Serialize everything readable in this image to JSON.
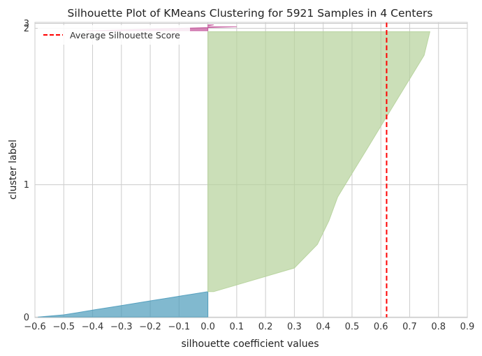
{
  "chart_data": {
    "type": "area",
    "title": "Silhouette Plot of KMeans Clustering for 5921 Samples in 4 Centers",
    "xlabel": "silhouette coefficient values",
    "ylabel": "cluster label",
    "xlim": [
      -0.6,
      0.9
    ],
    "xticks": [
      "−0.6",
      "−0.5",
      "−0.4",
      "−0.3",
      "−0.2",
      "−0.1",
      "0.0",
      "0.1",
      "0.2",
      "0.3",
      "0.4",
      "0.5",
      "0.6",
      "0.7",
      "0.8",
      "0.9"
    ],
    "xtick_values": [
      -0.6,
      -0.5,
      -0.4,
      -0.3,
      -0.2,
      -0.1,
      0.0,
      0.1,
      0.2,
      0.3,
      0.4,
      0.5,
      0.6,
      0.7,
      0.8,
      0.9
    ],
    "yticks": [
      "0",
      "1",
      "2",
      "3"
    ],
    "ylim": [
      -10,
      6011
    ],
    "grid": true,
    "legend": {
      "position": "top-left",
      "entries": [
        "Average Silhouette Score"
      ]
    },
    "average_silhouette_score": 0.62,
    "clusters": [
      {
        "label": "0",
        "color": "#4c9bbb",
        "y_start": 0,
        "size": 520,
        "tick_y": 0,
        "sorted_values": [
          -0.59,
          -0.5,
          -0.45,
          -0.4,
          -0.35,
          -0.3,
          -0.25,
          -0.2,
          -0.15,
          -0.1,
          -0.05,
          0.0
        ]
      },
      {
        "label": "1",
        "color": "#b5d29a",
        "y_start": 520,
        "size": 5300,
        "tick_y": 2700,
        "sorted_values": [
          0.02,
          0.3,
          0.38,
          0.42,
          0.45,
          0.5,
          0.55,
          0.6,
          0.65,
          0.7,
          0.75,
          0.77
        ]
      },
      {
        "label": "2",
        "color": "#c4559b",
        "y_start": 5840,
        "size": 80,
        "tick_y": 5890,
        "sorted_values": [
          -0.42,
          -0.3,
          -0.2,
          -0.1,
          0.0,
          0.1
        ]
      },
      {
        "label": "3",
        "color": "#c4559b",
        "y_start": 5940,
        "size": 20,
        "tick_y": 5990,
        "sorted_values": [
          0.0,
          0.02
        ]
      }
    ],
    "colors": {
      "average_line": "#ff0000",
      "grid": "#cccccc",
      "axis": "#cccccc"
    }
  }
}
